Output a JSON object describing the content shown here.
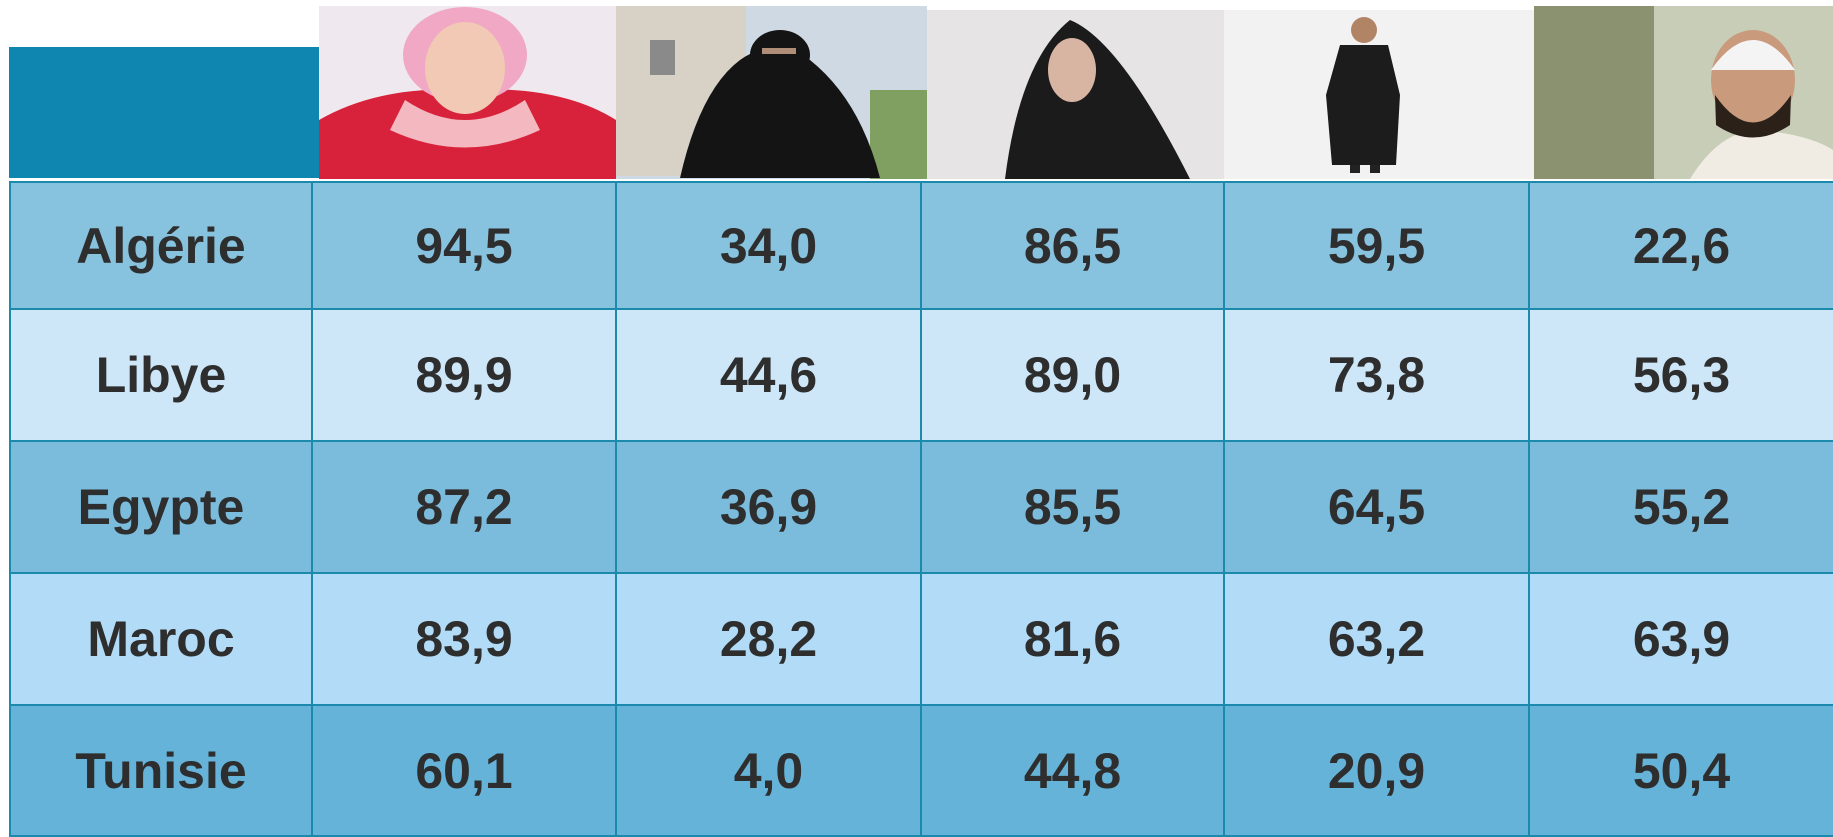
{
  "table": {
    "rows": [
      [
        "Algérie",
        "94,5",
        "34,0",
        "86,5",
        "59,5",
        "22,6"
      ],
      [
        "Libye",
        "89,9",
        "44,6",
        "89,0",
        "73,8",
        "56,3"
      ],
      [
        "Egypte",
        "87,2",
        "36,9",
        "85,5",
        "64,5",
        "55,2"
      ],
      [
        "Maroc",
        "83,9",
        "28,2",
        "81,6",
        "63,2",
        "63,9"
      ],
      [
        "Tunisie",
        "60,1",
        "4,0",
        "44,8",
        "20,9",
        "50,4"
      ]
    ]
  }
}
